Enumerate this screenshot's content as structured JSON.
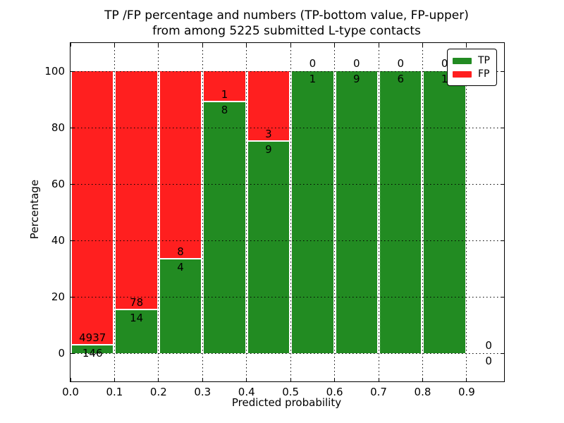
{
  "figure": {
    "title_line1": "TP /FP percentage and numbers (TP-bottom value, FP-upper)",
    "title_line2": "from among 5225 submitted L-type contacts"
  },
  "chart_data": {
    "type": "bar",
    "subtype": "stacked-percentage",
    "title": "TP /FP percentage and numbers (TP-bottom value, FP-upper) from among 5225 submitted L-type contacts",
    "xlabel": "Predicted probability",
    "ylabel": "Percentage",
    "total_contacts": 5225,
    "bin_width": 0.1,
    "bin_starts": [
      0.0,
      0.1,
      0.2,
      0.3,
      0.4,
      0.5,
      0.6,
      0.7,
      0.8,
      0.9
    ],
    "categories": [
      "0.0-0.1",
      "0.1-0.2",
      "0.2-0.3",
      "0.3-0.4",
      "0.4-0.5",
      "0.5-0.6",
      "0.6-0.7",
      "0.7-0.8",
      "0.8-0.9",
      "0.9-1.0"
    ],
    "series": [
      {
        "name": "TP",
        "color": "#228b22",
        "values": [
          146,
          14,
          4,
          8,
          9,
          1,
          9,
          6,
          1,
          0
        ]
      },
      {
        "name": "FP",
        "color": "#ff1f1f",
        "values": [
          4937,
          78,
          8,
          1,
          3,
          0,
          0,
          0,
          0,
          0
        ]
      }
    ],
    "tp_percentages": [
      2.87,
      15.22,
      33.33,
      88.89,
      75.0,
      100.0,
      100.0,
      100.0,
      100.0,
      null
    ],
    "x_tick_labels": [
      "0.0",
      "0.1",
      "0.2",
      "0.3",
      "0.4",
      "0.5",
      "0.6",
      "0.7",
      "0.8",
      "0.9"
    ],
    "y_tick_values": [
      0,
      20,
      40,
      60,
      80,
      100
    ],
    "xlim": [
      0,
      0.985
    ],
    "ylim": [
      -10,
      110
    ],
    "grid": "dotted",
    "legend": {
      "position": "upper right",
      "entries": [
        {
          "label": "TP",
          "color": "#228b22"
        },
        {
          "label": "FP",
          "color": "#ff1f1f"
        }
      ]
    }
  }
}
